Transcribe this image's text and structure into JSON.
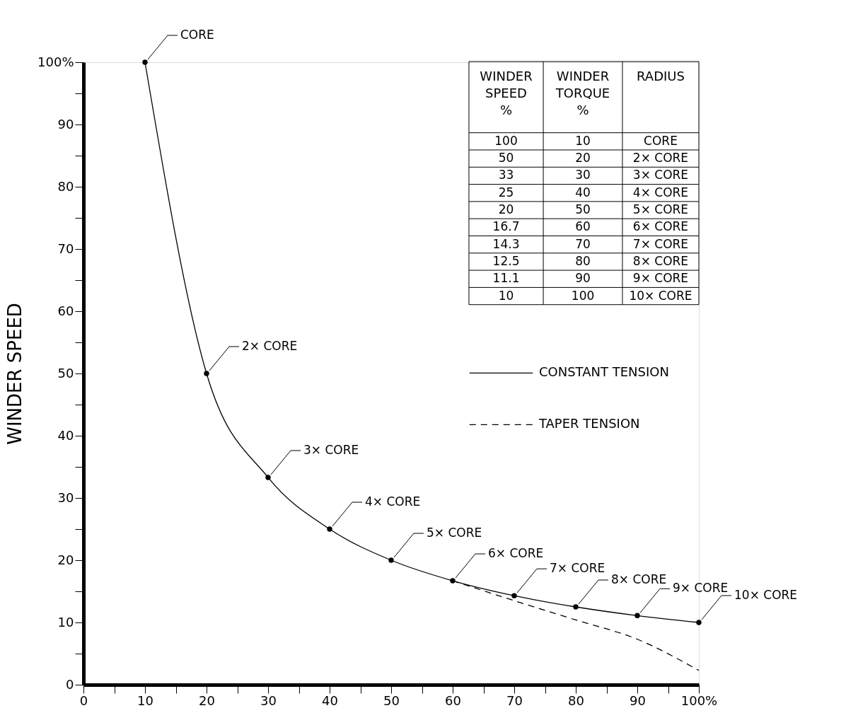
{
  "chart_data": {
    "type": "line",
    "ylabel": "WINDER SPEED",
    "x": [
      10,
      20,
      30,
      40,
      50,
      60,
      70,
      80,
      90,
      100
    ],
    "series": [
      {
        "name": "CONSTANT TENSION",
        "color": "#000000",
        "line_style": "solid",
        "marker": "circle",
        "values": [
          100,
          50,
          33.3,
          25,
          20,
          16.7,
          14.3,
          12.5,
          11.1,
          10
        ]
      },
      {
        "name": "TAPER TENSION",
        "color": "#000000",
        "line_style": "dashed",
        "marker": "none",
        "x": [
          60,
          70,
          80,
          90,
          100
        ],
        "values": [
          16.7,
          13.5,
          10.4,
          7.3,
          2.3
        ]
      }
    ],
    "xlim": [
      0,
      100
    ],
    "ylim": [
      0,
      100
    ],
    "xticks": [
      0,
      {
        "value": 5,
        "label": null
      },
      10,
      {
        "value": 15,
        "label": null
      },
      20,
      {
        "value": 25,
        "label": null
      },
      30,
      {
        "value": 35,
        "label": null
      },
      40,
      {
        "value": 45,
        "label": null
      },
      50,
      {
        "value": 55,
        "label": null
      },
      60,
      {
        "value": 65,
        "label": null
      },
      70,
      {
        "value": 75,
        "label": null
      },
      80,
      {
        "value": 85,
        "label": null
      },
      90,
      {
        "value": 95,
        "label": null
      },
      {
        "value": 100,
        "label": "100%"
      }
    ],
    "yticks": [
      0,
      {
        "value": 5,
        "label": null
      },
      10,
      {
        "value": 15,
        "label": null
      },
      20,
      {
        "value": 25,
        "label": null
      },
      30,
      {
        "value": 35,
        "label": null
      },
      40,
      {
        "value": 45,
        "label": null
      },
      50,
      {
        "value": 55,
        "label": null
      },
      60,
      {
        "value": 65,
        "label": null
      },
      70,
      {
        "value": 75,
        "label": null
      },
      80,
      {
        "value": 85,
        "label": null
      },
      90,
      {
        "value": 95,
        "label": null
      },
      {
        "value": 100,
        "label": "100%"
      }
    ],
    "grid": false,
    "legend": "right",
    "annotations": [
      {
        "text": "CORE",
        "x": 10,
        "y": 100
      },
      {
        "text": "2× CORE",
        "x": 20,
        "y": 50
      },
      {
        "text": "3× CORE",
        "x": 30,
        "y": 33.3
      },
      {
        "text": "4× CORE",
        "x": 40,
        "y": 25
      },
      {
        "text": "5× CORE",
        "x": 50,
        "y": 20
      },
      {
        "text": "6× CORE",
        "x": 60,
        "y": 16.7
      },
      {
        "text": "7× CORE",
        "x": 70,
        "y": 14.3
      },
      {
        "text": "8× CORE",
        "x": 80,
        "y": 12.5
      },
      {
        "text": "9× CORE",
        "x": 90,
        "y": 11.1
      },
      {
        "text": "10× CORE",
        "x": 100,
        "y": 10
      },
      "WINDER SPEED %",
      "WINDER TORQUE %",
      "RADIUS",
      "100",
      "10",
      "CORE",
      "50",
      "20",
      "2× CORE",
      "33",
      "30",
      "3× CORE",
      "25",
      "40",
      "4× CORE",
      "20",
      "50",
      "5× CORE",
      "16.7",
      "60",
      "6× CORE",
      "14.3",
      "70",
      "7× CORE",
      "12.5",
      "80",
      "8× CORE",
      "11.1",
      "90",
      "9× CORE",
      "10",
      "100",
      "10× CORE"
    ]
  }
}
